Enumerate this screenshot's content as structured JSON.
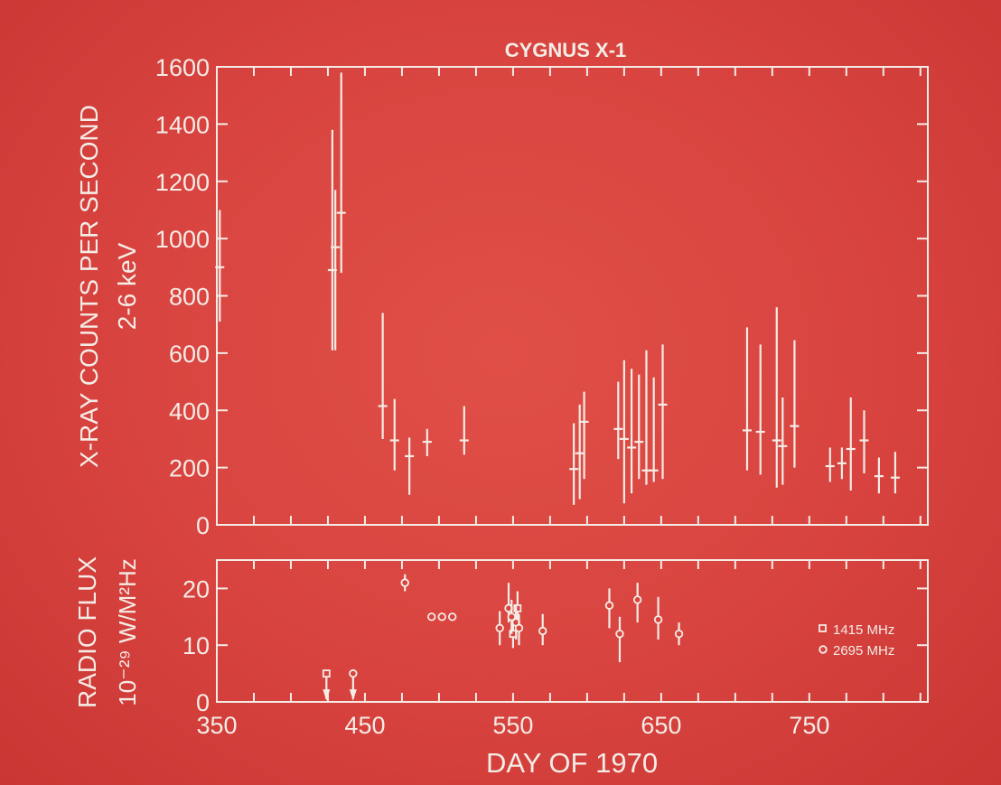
{
  "chart_data": [
    {
      "type": "scatter",
      "title": "CYGNUS X-1",
      "ylabel_line1": "X-RAY COUNTS PER SECOND",
      "ylabel_line2": "2-6 keV",
      "xlim": [
        350,
        830
      ],
      "ylim": [
        0,
        1600
      ],
      "yticks": [
        0,
        200,
        400,
        600,
        800,
        1000,
        1200,
        1400,
        1600
      ],
      "ytick_labels": [
        "0",
        "200",
        "400",
        "600",
        "800",
        "1000",
        "1200",
        "1400",
        "1600"
      ],
      "grid": false,
      "points": [
        {
          "x": 352,
          "y": 900,
          "ylo": 710,
          "yhi": 1100
        },
        {
          "x": 428,
          "y": 890,
          "ylo": 610,
          "yhi": 1380
        },
        {
          "x": 430,
          "y": 970,
          "ylo": 610,
          "yhi": 1170
        },
        {
          "x": 434,
          "y": 1090,
          "ylo": 880,
          "yhi": 1580
        },
        {
          "x": 462,
          "y": 415,
          "ylo": 300,
          "yhi": 740
        },
        {
          "x": 470,
          "y": 295,
          "ylo": 190,
          "yhi": 440
        },
        {
          "x": 480,
          "y": 240,
          "ylo": 105,
          "yhi": 305
        },
        {
          "x": 492,
          "y": 290,
          "ylo": 240,
          "yhi": 335
        },
        {
          "x": 517,
          "y": 295,
          "ylo": 245,
          "yhi": 415
        },
        {
          "x": 591,
          "y": 195,
          "ylo": 70,
          "yhi": 355
        },
        {
          "x": 595,
          "y": 250,
          "ylo": 90,
          "yhi": 420
        },
        {
          "x": 598,
          "y": 360,
          "ylo": 160,
          "yhi": 465
        },
        {
          "x": 621,
          "y": 335,
          "ylo": 230,
          "yhi": 500
        },
        {
          "x": 625,
          "y": 300,
          "ylo": 75,
          "yhi": 575
        },
        {
          "x": 630,
          "y": 270,
          "ylo": 110,
          "yhi": 545
        },
        {
          "x": 635,
          "y": 290,
          "ylo": 160,
          "yhi": 525
        },
        {
          "x": 640,
          "y": 190,
          "ylo": 140,
          "yhi": 610
        },
        {
          "x": 645,
          "y": 190,
          "ylo": 150,
          "yhi": 515
        },
        {
          "x": 651,
          "y": 420,
          "ylo": 160,
          "yhi": 630
        },
        {
          "x": 708,
          "y": 330,
          "ylo": 190,
          "yhi": 690
        },
        {
          "x": 717,
          "y": 325,
          "ylo": 175,
          "yhi": 630
        },
        {
          "x": 728,
          "y": 295,
          "ylo": 130,
          "yhi": 760
        },
        {
          "x": 732,
          "y": 275,
          "ylo": 140,
          "yhi": 445
        },
        {
          "x": 740,
          "y": 345,
          "ylo": 200,
          "yhi": 645
        },
        {
          "x": 764,
          "y": 205,
          "ylo": 150,
          "yhi": 270
        },
        {
          "x": 772,
          "y": 215,
          "ylo": 160,
          "yhi": 270
        },
        {
          "x": 778,
          "y": 265,
          "ylo": 120,
          "yhi": 445
        },
        {
          "x": 787,
          "y": 295,
          "ylo": 180,
          "yhi": 400
        },
        {
          "x": 797,
          "y": 170,
          "ylo": 110,
          "yhi": 235
        },
        {
          "x": 808,
          "y": 165,
          "ylo": 110,
          "yhi": 255
        }
      ]
    },
    {
      "type": "scatter",
      "ylabel_line1": "RADIO FLUX",
      "ylabel_line2": "10⁻²⁹ W/M²Hz",
      "xlabel": "DAY OF 1970",
      "xlim": [
        350,
        830
      ],
      "ylim": [
        0,
        25
      ],
      "xticks": [
        350,
        450,
        550,
        650,
        750
      ],
      "xtick_labels": [
        "350",
        "450",
        "550",
        "650",
        "750"
      ],
      "yticks": [
        0,
        10,
        20
      ],
      "ytick_labels": [
        "0",
        "10",
        "20"
      ],
      "grid": false,
      "legend": {
        "position": "right",
        "entries": [
          {
            "marker": "square",
            "label": "1415 MHz"
          },
          {
            "marker": "circle",
            "label": "2695 MHz"
          }
        ]
      },
      "series": [
        {
          "marker": "square",
          "points": [
            {
              "x": 424,
              "y": 5,
              "upper_limit": true
            },
            {
              "x": 550,
              "y": 12,
              "ylo": 9.5,
              "yhi": 14.5
            },
            {
              "x": 553,
              "y": 16.5,
              "ylo": 13,
              "yhi": 19.5
            }
          ]
        },
        {
          "marker": "circle",
          "points": [
            {
              "x": 442,
              "y": 5,
              "upper_limit": true
            },
            {
              "x": 477,
              "y": 21,
              "ylo": 19.5,
              "yhi": 22.5
            },
            {
              "x": 495,
              "y": 15
            },
            {
              "x": 502,
              "y": 15
            },
            {
              "x": 509,
              "y": 15
            },
            {
              "x": 541,
              "y": 13,
              "ylo": 10,
              "yhi": 16
            },
            {
              "x": 547,
              "y": 16.5,
              "ylo": 14,
              "yhi": 21
            },
            {
              "x": 549,
              "y": 15,
              "ylo": 12,
              "yhi": 18
            },
            {
              "x": 552,
              "y": 14,
              "ylo": 11,
              "yhi": 17
            },
            {
              "x": 554,
              "y": 13,
              "ylo": 10,
              "yhi": 15.5
            },
            {
              "x": 570,
              "y": 12.5,
              "ylo": 10,
              "yhi": 15.5
            },
            {
              "x": 615,
              "y": 17,
              "ylo": 13,
              "yhi": 20
            },
            {
              "x": 622,
              "y": 12,
              "ylo": 7,
              "yhi": 15
            },
            {
              "x": 634,
              "y": 18,
              "ylo": 14,
              "yhi": 21
            },
            {
              "x": 648,
              "y": 14.5,
              "ylo": 11,
              "yhi": 18.5
            },
            {
              "x": 662,
              "y": 12,
              "ylo": 10,
              "yhi": 14
            }
          ]
        }
      ]
    }
  ]
}
